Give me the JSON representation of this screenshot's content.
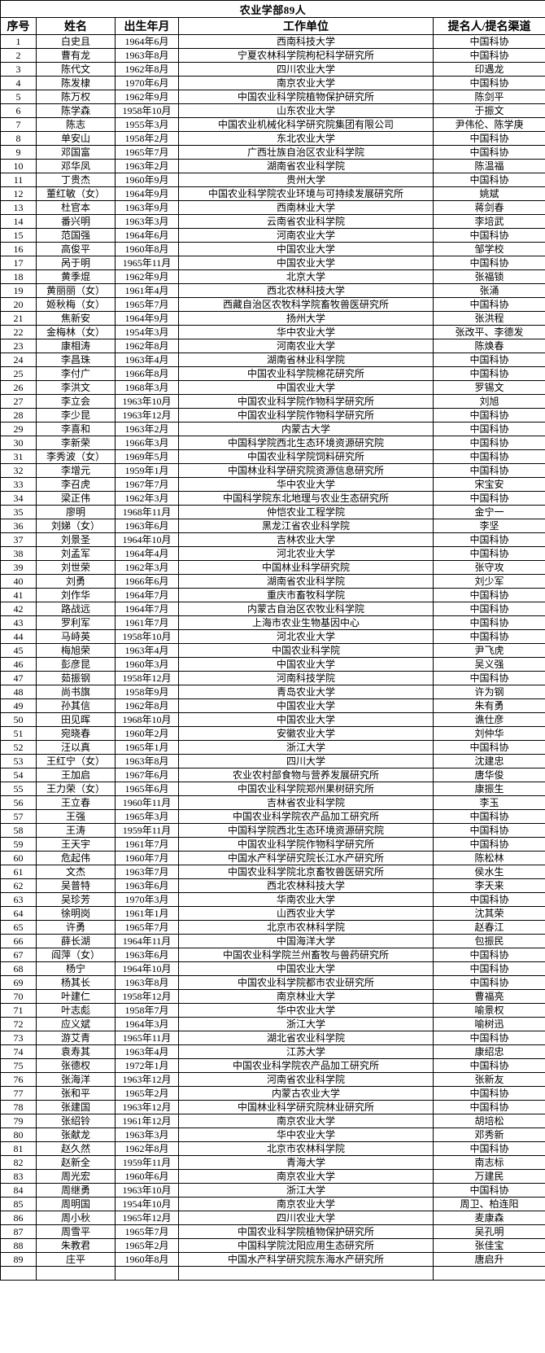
{
  "table": {
    "title": "农业学部89人",
    "headers": [
      "序号",
      "姓名",
      "出生年月",
      "工作单位",
      "提名人/提名渠道"
    ],
    "colors": {
      "border": "#000000",
      "text": "#000000",
      "background": "#ffffff"
    },
    "rows": [
      [
        "1",
        "白史且",
        "1964年6月",
        "西南科技大学",
        "中国科协"
      ],
      [
        "2",
        "曹有龙",
        "1963年8月",
        "宁夏农林科学院枸杞科学研究所",
        "中国科协"
      ],
      [
        "3",
        "陈代文",
        "1962年8月",
        "四川农业大学",
        "印遇龙"
      ],
      [
        "4",
        "陈发棣",
        "1970年6月",
        "南京农业大学",
        "中国科协"
      ],
      [
        "5",
        "陈万权",
        "1962年9月",
        "中国农业科学院植物保护研究所",
        "陈剑平"
      ],
      [
        "6",
        "陈学森",
        "1958年10月",
        "山东农业大学",
        "于振文"
      ],
      [
        "7",
        "陈志",
        "1955年3月",
        "中国农业机械化科学研究院集团有限公司",
        "尹伟伦、陈学庚"
      ],
      [
        "8",
        "单安山",
        "1958年2月",
        "东北农业大学",
        "中国科协"
      ],
      [
        "9",
        "邓国富",
        "1965年7月",
        "广西壮族自治区农业科学院",
        "中国科协"
      ],
      [
        "10",
        "邓华凤",
        "1963年2月",
        "湖南省农业科学院",
        "陈温福"
      ],
      [
        "11",
        "丁贵杰",
        "1960年9月",
        "贵州大学",
        "中国科协"
      ],
      [
        "12",
        "董红敏（女）",
        "1964年9月",
        "中国农业科学院农业环境与可持续发展研究所",
        "姚斌"
      ],
      [
        "13",
        "杜官本",
        "1963年9月",
        "西南林业大学",
        "蒋剑春"
      ],
      [
        "14",
        "番兴明",
        "1963年3月",
        "云南省农业科学院",
        "李培武"
      ],
      [
        "15",
        "范国强",
        "1964年6月",
        "河南农业大学",
        "中国科协"
      ],
      [
        "16",
        "高俊平",
        "1960年8月",
        "中国农业大学",
        "邹学校"
      ],
      [
        "17",
        "呙于明",
        "1965年11月",
        "中国农业大学",
        "中国科协"
      ],
      [
        "18",
        "黄季焜",
        "1962年9月",
        "北京大学",
        "张福锁"
      ],
      [
        "19",
        "黄丽丽（女）",
        "1961年4月",
        "西北农林科技大学",
        "张涌"
      ],
      [
        "20",
        "姬秋梅（女）",
        "1965年7月",
        "西藏自治区农牧科学院畜牧兽医研究所",
        "中国科协"
      ],
      [
        "21",
        "焦新安",
        "1964年9月",
        "扬州大学",
        "张洪程"
      ],
      [
        "22",
        "金梅林（女）",
        "1954年3月",
        "华中农业大学",
        "张改平、李德发"
      ],
      [
        "23",
        "康相涛",
        "1962年8月",
        "河南农业大学",
        "陈焕春"
      ],
      [
        "24",
        "李昌珠",
        "1963年4月",
        "湖南省林业科学院",
        "中国科协"
      ],
      [
        "25",
        "李付广",
        "1966年8月",
        "中国农业科学院棉花研究所",
        "中国科协"
      ],
      [
        "26",
        "李洪文",
        "1968年3月",
        "中国农业大学",
        "罗锡文"
      ],
      [
        "27",
        "李立会",
        "1963年10月",
        "中国农业科学院作物科学研究所",
        "刘旭"
      ],
      [
        "28",
        "李少昆",
        "1963年12月",
        "中国农业科学院作物科学研究所",
        "中国科协"
      ],
      [
        "29",
        "李喜和",
        "1963年2月",
        "内蒙古大学",
        "中国科协"
      ],
      [
        "30",
        "李新荣",
        "1966年3月",
        "中国科学院西北生态环境资源研究院",
        "中国科协"
      ],
      [
        "31",
        "李秀波（女）",
        "1969年5月",
        "中国农业科学院饲料研究所",
        "中国科协"
      ],
      [
        "32",
        "李增元",
        "1959年1月",
        "中国林业科学研究院资源信息研究所",
        "中国科协"
      ],
      [
        "33",
        "李召虎",
        "1967年7月",
        "华中农业大学",
        "宋宝安"
      ],
      [
        "34",
        "梁正伟",
        "1962年3月",
        "中国科学院东北地理与农业生态研究所",
        "中国科协"
      ],
      [
        "35",
        "廖明",
        "1968年11月",
        "仲恺农业工程学院",
        "金宁一"
      ],
      [
        "36",
        "刘娣（女）",
        "1963年6月",
        "黑龙江省农业科学院",
        "李坚"
      ],
      [
        "37",
        "刘景圣",
        "1964年10月",
        "吉林农业大学",
        "中国科协"
      ],
      [
        "38",
        "刘孟军",
        "1964年4月",
        "河北农业大学",
        "中国科协"
      ],
      [
        "39",
        "刘世荣",
        "1962年3月",
        "中国林业科学研究院",
        "张守攻"
      ],
      [
        "40",
        "刘勇",
        "1966年6月",
        "湖南省农业科学院",
        "刘少军"
      ],
      [
        "41",
        "刘作华",
        "1964年7月",
        "重庆市畜牧科学院",
        "中国科协"
      ],
      [
        "42",
        "路战远",
        "1964年7月",
        "内蒙古自治区农牧业科学院",
        "中国科协"
      ],
      [
        "43",
        "罗利军",
        "1961年7月",
        "上海市农业生物基因中心",
        "中国科协"
      ],
      [
        "44",
        "马峙英",
        "1958年10月",
        "河北农业大学",
        "中国科协"
      ],
      [
        "45",
        "梅旭荣",
        "1963年4月",
        "中国农业科学院",
        "尹飞虎"
      ],
      [
        "46",
        "彭彦昆",
        "1960年3月",
        "中国农业大学",
        "吴义强"
      ],
      [
        "47",
        "茹振钢",
        "1958年12月",
        "河南科技学院",
        "中国科协"
      ],
      [
        "48",
        "尚书旗",
        "1958年9月",
        "青岛农业大学",
        "许为钢"
      ],
      [
        "49",
        "孙其信",
        "1962年8月",
        "中国农业大学",
        "朱有勇"
      ],
      [
        "50",
        "田见晖",
        "1968年10月",
        "中国农业大学",
        "谯仕彦"
      ],
      [
        "51",
        "宛晓春",
        "1960年2月",
        "安徽农业大学",
        "刘仲华"
      ],
      [
        "52",
        "汪以真",
        "1965年1月",
        "浙江大学",
        "中国科协"
      ],
      [
        "53",
        "王红宁（女）",
        "1963年8月",
        "四川大学",
        "沈建忠"
      ],
      [
        "54",
        "王加启",
        "1967年6月",
        "农业农村部食物与营养发展研究所",
        "唐华俊"
      ],
      [
        "55",
        "王力荣（女）",
        "1965年6月",
        "中国农业科学院郑州果树研究所",
        "康振生"
      ],
      [
        "56",
        "王立春",
        "1960年11月",
        "吉林省农业科学院",
        "李玉"
      ],
      [
        "57",
        "王强",
        "1965年3月",
        "中国农业科学院农产品加工研究所",
        "中国科协"
      ],
      [
        "58",
        "王涛",
        "1959年11月",
        "中国科学院西北生态环境资源研究院",
        "中国科协"
      ],
      [
        "59",
        "王天宇",
        "1961年7月",
        "中国农业科学院作物科学研究所",
        "中国科协"
      ],
      [
        "60",
        "危起伟",
        "1960年7月",
        "中国水产科学研究院长江水产研究所",
        "陈松林"
      ],
      [
        "61",
        "文杰",
        "1963年7月",
        "中国农业科学院北京畜牧兽医研究所",
        "侯水生"
      ],
      [
        "62",
        "吴普特",
        "1963年6月",
        "西北农林科技大学",
        "李天来"
      ],
      [
        "63",
        "吴珍芳",
        "1970年3月",
        "华南农业大学",
        "中国科协"
      ],
      [
        "64",
        "徐明岗",
        "1961年1月",
        "山西农业大学",
        "沈其荣"
      ],
      [
        "65",
        "许勇",
        "1965年7月",
        "北京市农林科学院",
        "赵春江"
      ],
      [
        "66",
        "薛长湖",
        "1964年11月",
        "中国海洋大学",
        "包振民"
      ],
      [
        "67",
        "阎萍（女）",
        "1963年6月",
        "中国农业科学院兰州畜牧与兽药研究所",
        "中国科协"
      ],
      [
        "68",
        "杨宁",
        "1964年10月",
        "中国农业大学",
        "中国科协"
      ],
      [
        "69",
        "杨其长",
        "1963年8月",
        "中国农业科学院都市农业研究所",
        "中国科协"
      ],
      [
        "70",
        "叶建仁",
        "1958年12月",
        "南京林业大学",
        "曹福亮"
      ],
      [
        "71",
        "叶志彪",
        "1958年7月",
        "华中农业大学",
        "喻景权"
      ],
      [
        "72",
        "应义斌",
        "1964年3月",
        "浙江大学",
        "喻树迅"
      ],
      [
        "73",
        "游艾青",
        "1965年11月",
        "湖北省农业科学院",
        "中国科协"
      ],
      [
        "74",
        "袁寿其",
        "1963年4月",
        "江苏大学",
        "康绍忠"
      ],
      [
        "75",
        "张德权",
        "1972年1月",
        "中国农业科学院农产品加工研究所",
        "中国科协"
      ],
      [
        "76",
        "张海洋",
        "1963年12月",
        "河南省农业科学院",
        "张新友"
      ],
      [
        "77",
        "张和平",
        "1965年2月",
        "内蒙古农业大学",
        "中国科协"
      ],
      [
        "78",
        "张建国",
        "1963年12月",
        "中国林业科学研究院林业研究所",
        "中国科协"
      ],
      [
        "79",
        "张绍铃",
        "1961年12月",
        "南京农业大学",
        "胡培松"
      ],
      [
        "80",
        "张献龙",
        "1963年3月",
        "华中农业大学",
        "邓秀新"
      ],
      [
        "81",
        "赵久然",
        "1962年8月",
        "北京市农林科学院",
        "中国科协"
      ],
      [
        "82",
        "赵新全",
        "1959年11月",
        "青海大学",
        "南志标"
      ],
      [
        "83",
        "周光宏",
        "1960年6月",
        "南京农业大学",
        "万建民"
      ],
      [
        "84",
        "周继勇",
        "1963年10月",
        "浙江大学",
        "中国科协"
      ],
      [
        "85",
        "周明国",
        "1954年10月",
        "南京农业大学",
        "周卫、柏连阳"
      ],
      [
        "86",
        "周小秋",
        "1965年12月",
        "四川农业大学",
        "麦康森"
      ],
      [
        "87",
        "周雪平",
        "1965年7月",
        "中国农业科学院植物保护研究所",
        "吴孔明"
      ],
      [
        "88",
        "朱教君",
        "1965年2月",
        "中国科学院沈阳应用生态研究所",
        "张佳宝"
      ],
      [
        "89",
        "庄平",
        "1960年8月",
        "中国水产科学研究院东海水产研究所",
        "唐启升"
      ],
      [
        "",
        "",
        "",
        "",
        ""
      ]
    ]
  }
}
